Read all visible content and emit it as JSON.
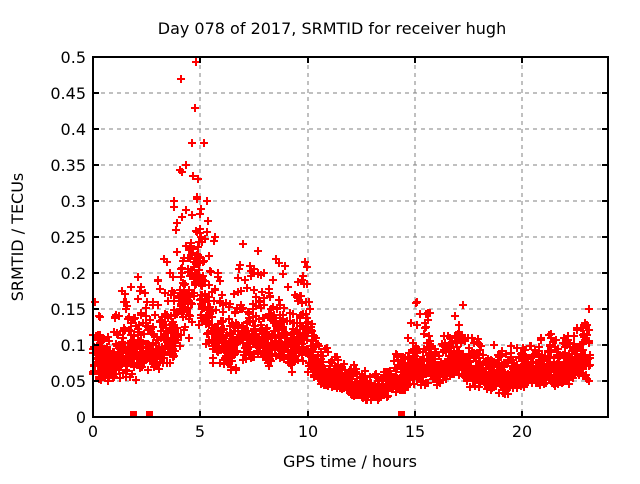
{
  "chart_data": {
    "type": "scatter",
    "title": "Day 078 of 2017, SRMTID for receiver hugh",
    "xlabel": "GPS time / hours",
    "ylabel": "SRMTID / TECUs",
    "xlim": [
      0,
      24
    ],
    "ylim": [
      0,
      0.5
    ],
    "xticks": {
      "values": [
        0,
        5,
        10,
        15,
        20
      ],
      "labels": [
        "0",
        "5",
        "10",
        "15",
        "20"
      ]
    },
    "yticks": {
      "values": [
        0,
        0.05,
        0.1,
        0.15,
        0.2,
        0.25,
        0.3,
        0.35,
        0.4,
        0.45,
        0.5
      ],
      "labels": [
        "0",
        "0.05",
        "0.1",
        "0.15",
        "0.2",
        "0.25",
        "0.3",
        "0.35",
        "0.4",
        "0.45",
        "0.5"
      ]
    },
    "grid": true,
    "legend_position": "none",
    "max_point": {
      "x": 4.8,
      "y": 0.49
    },
    "series": [
      {
        "name": "srmtid-points",
        "marker": "plus",
        "color": "#ff0000",
        "bin_format": [
          "x_start_hours",
          "bin_width_hours",
          "point_count",
          "y_min",
          "y_typical_max",
          "y_max"
        ],
        "bins": [
          [
            0.0,
            0.25,
            30,
            0.05,
            0.11,
            0.16
          ],
          [
            0.25,
            0.25,
            30,
            0.04,
            0.11,
            0.15
          ],
          [
            0.5,
            0.25,
            30,
            0.04,
            0.1,
            0.13
          ],
          [
            0.75,
            0.25,
            28,
            0.05,
            0.1,
            0.13
          ],
          [
            1.0,
            0.25,
            28,
            0.05,
            0.11,
            0.15
          ],
          [
            1.25,
            0.25,
            28,
            0.05,
            0.12,
            0.175
          ],
          [
            1.5,
            0.25,
            28,
            0.05,
            0.12,
            0.16
          ],
          [
            1.75,
            0.25,
            28,
            0.05,
            0.13,
            0.18
          ],
          [
            2.0,
            0.25,
            28,
            0.05,
            0.14,
            0.195
          ],
          [
            2.25,
            0.25,
            28,
            0.06,
            0.13,
            0.18
          ],
          [
            2.5,
            0.25,
            28,
            0.06,
            0.12,
            0.16
          ],
          [
            2.75,
            0.25,
            28,
            0.06,
            0.11,
            0.16
          ],
          [
            3.0,
            0.25,
            28,
            0.06,
            0.13,
            0.19
          ],
          [
            3.25,
            0.25,
            28,
            0.07,
            0.14,
            0.22
          ],
          [
            3.5,
            0.25,
            28,
            0.07,
            0.14,
            0.2
          ],
          [
            3.75,
            0.25,
            28,
            0.07,
            0.16,
            0.3
          ],
          [
            4.0,
            0.25,
            30,
            0.08,
            0.25,
            0.47
          ],
          [
            4.25,
            0.25,
            30,
            0.09,
            0.22,
            0.35
          ],
          [
            4.5,
            0.25,
            28,
            0.09,
            0.25,
            0.38
          ],
          [
            4.75,
            0.25,
            32,
            0.1,
            0.33,
            0.493
          ],
          [
            5.0,
            0.25,
            32,
            0.09,
            0.25,
            0.38
          ],
          [
            5.25,
            0.25,
            28,
            0.08,
            0.18,
            0.3
          ],
          [
            5.5,
            0.25,
            28,
            0.07,
            0.16,
            0.25
          ],
          [
            5.75,
            0.25,
            28,
            0.07,
            0.14,
            0.2
          ],
          [
            6.0,
            0.25,
            28,
            0.06,
            0.13,
            0.17
          ],
          [
            6.25,
            0.25,
            28,
            0.06,
            0.13,
            0.16
          ],
          [
            6.5,
            0.25,
            28,
            0.06,
            0.14,
            0.18
          ],
          [
            6.75,
            0.25,
            28,
            0.07,
            0.15,
            0.24
          ],
          [
            7.0,
            0.25,
            28,
            0.07,
            0.14,
            0.19
          ],
          [
            7.25,
            0.25,
            28,
            0.07,
            0.15,
            0.21
          ],
          [
            7.5,
            0.25,
            28,
            0.07,
            0.16,
            0.23
          ],
          [
            7.75,
            0.25,
            28,
            0.07,
            0.15,
            0.2
          ],
          [
            8.0,
            0.25,
            28,
            0.06,
            0.14,
            0.18
          ],
          [
            8.25,
            0.25,
            28,
            0.06,
            0.14,
            0.19
          ],
          [
            8.5,
            0.25,
            28,
            0.07,
            0.15,
            0.22
          ],
          [
            8.75,
            0.25,
            28,
            0.07,
            0.14,
            0.21
          ],
          [
            9.0,
            0.25,
            28,
            0.06,
            0.13,
            0.18
          ],
          [
            9.25,
            0.25,
            28,
            0.06,
            0.13,
            0.17
          ],
          [
            9.5,
            0.25,
            28,
            0.07,
            0.14,
            0.19
          ],
          [
            9.75,
            0.25,
            30,
            0.07,
            0.16,
            0.215
          ],
          [
            10.0,
            0.25,
            28,
            0.06,
            0.12,
            0.16
          ],
          [
            10.25,
            0.25,
            26,
            0.05,
            0.09,
            0.12
          ],
          [
            10.5,
            0.25,
            26,
            0.04,
            0.08,
            0.1
          ],
          [
            10.75,
            0.25,
            26,
            0.04,
            0.075,
            0.1
          ],
          [
            11.0,
            0.25,
            26,
            0.04,
            0.07,
            0.09
          ],
          [
            11.25,
            0.25,
            26,
            0.035,
            0.07,
            0.09
          ],
          [
            11.5,
            0.25,
            26,
            0.03,
            0.065,
            0.085
          ],
          [
            11.75,
            0.25,
            26,
            0.03,
            0.06,
            0.08
          ],
          [
            12.0,
            0.25,
            26,
            0.025,
            0.055,
            0.075
          ],
          [
            12.25,
            0.25,
            26,
            0.025,
            0.05,
            0.07
          ],
          [
            12.5,
            0.25,
            26,
            0.02,
            0.05,
            0.065
          ],
          [
            12.75,
            0.25,
            26,
            0.02,
            0.045,
            0.06
          ],
          [
            13.0,
            0.25,
            26,
            0.02,
            0.045,
            0.06
          ],
          [
            13.25,
            0.25,
            26,
            0.02,
            0.05,
            0.065
          ],
          [
            13.5,
            0.25,
            26,
            0.025,
            0.055,
            0.07
          ],
          [
            13.75,
            0.25,
            26,
            0.03,
            0.06,
            0.08
          ],
          [
            14.0,
            0.25,
            26,
            0.03,
            0.065,
            0.09
          ],
          [
            14.25,
            0.25,
            28,
            0.03,
            0.07,
            0.1
          ],
          [
            14.5,
            0.25,
            28,
            0.035,
            0.08,
            0.11
          ],
          [
            14.75,
            0.25,
            30,
            0.04,
            0.09,
            0.13
          ],
          [
            15.0,
            0.25,
            30,
            0.04,
            0.1,
            0.16
          ],
          [
            15.25,
            0.25,
            28,
            0.04,
            0.09,
            0.13
          ],
          [
            15.5,
            0.25,
            28,
            0.04,
            0.095,
            0.145
          ],
          [
            15.75,
            0.25,
            28,
            0.04,
            0.085,
            0.12
          ],
          [
            16.0,
            0.25,
            28,
            0.04,
            0.08,
            0.11
          ],
          [
            16.25,
            0.25,
            28,
            0.05,
            0.09,
            0.125
          ],
          [
            16.5,
            0.25,
            28,
            0.05,
            0.09,
            0.12
          ],
          [
            16.75,
            0.25,
            28,
            0.05,
            0.1,
            0.14
          ],
          [
            17.0,
            0.25,
            28,
            0.05,
            0.1,
            0.155
          ],
          [
            17.25,
            0.25,
            28,
            0.045,
            0.09,
            0.12
          ],
          [
            17.5,
            0.25,
            28,
            0.04,
            0.085,
            0.115
          ],
          [
            17.75,
            0.25,
            28,
            0.04,
            0.085,
            0.12
          ],
          [
            18.0,
            0.25,
            28,
            0.04,
            0.08,
            0.115
          ],
          [
            18.25,
            0.25,
            28,
            0.035,
            0.075,
            0.1
          ],
          [
            18.5,
            0.25,
            28,
            0.035,
            0.07,
            0.1
          ],
          [
            18.75,
            0.25,
            28,
            0.03,
            0.07,
            0.095
          ],
          [
            19.0,
            0.25,
            28,
            0.03,
            0.07,
            0.095
          ],
          [
            19.25,
            0.25,
            28,
            0.03,
            0.07,
            0.1
          ],
          [
            19.5,
            0.25,
            28,
            0.035,
            0.075,
            0.1
          ],
          [
            19.75,
            0.25,
            28,
            0.035,
            0.075,
            0.105
          ],
          [
            20.0,
            0.25,
            28,
            0.035,
            0.08,
            0.105
          ],
          [
            20.25,
            0.25,
            28,
            0.04,
            0.08,
            0.11
          ],
          [
            20.5,
            0.25,
            28,
            0.04,
            0.08,
            0.11
          ],
          [
            20.75,
            0.25,
            28,
            0.04,
            0.085,
            0.115
          ],
          [
            21.0,
            0.25,
            28,
            0.04,
            0.085,
            0.115
          ],
          [
            21.25,
            0.25,
            28,
            0.04,
            0.09,
            0.12
          ],
          [
            21.5,
            0.25,
            28,
            0.04,
            0.085,
            0.115
          ],
          [
            21.75,
            0.25,
            28,
            0.04,
            0.08,
            0.11
          ],
          [
            22.0,
            0.25,
            28,
            0.04,
            0.085,
            0.115
          ],
          [
            22.25,
            0.25,
            28,
            0.045,
            0.09,
            0.12
          ],
          [
            22.5,
            0.25,
            28,
            0.045,
            0.095,
            0.13
          ],
          [
            22.75,
            0.25,
            30,
            0.05,
            0.1,
            0.135
          ],
          [
            23.0,
            0.15,
            14,
            0.05,
            0.1,
            0.15
          ]
        ]
      },
      {
        "name": "x-axis-square-markers",
        "marker": "filled-square",
        "color": "#ff0000",
        "y": 0,
        "x": [
          1.85,
          2.6,
          14.35
        ]
      }
    ]
  },
  "colors": {
    "marker": "#ff0000",
    "grid": "#808080",
    "axis": "#000000",
    "text": "#000000",
    "background": "#ffffff"
  }
}
